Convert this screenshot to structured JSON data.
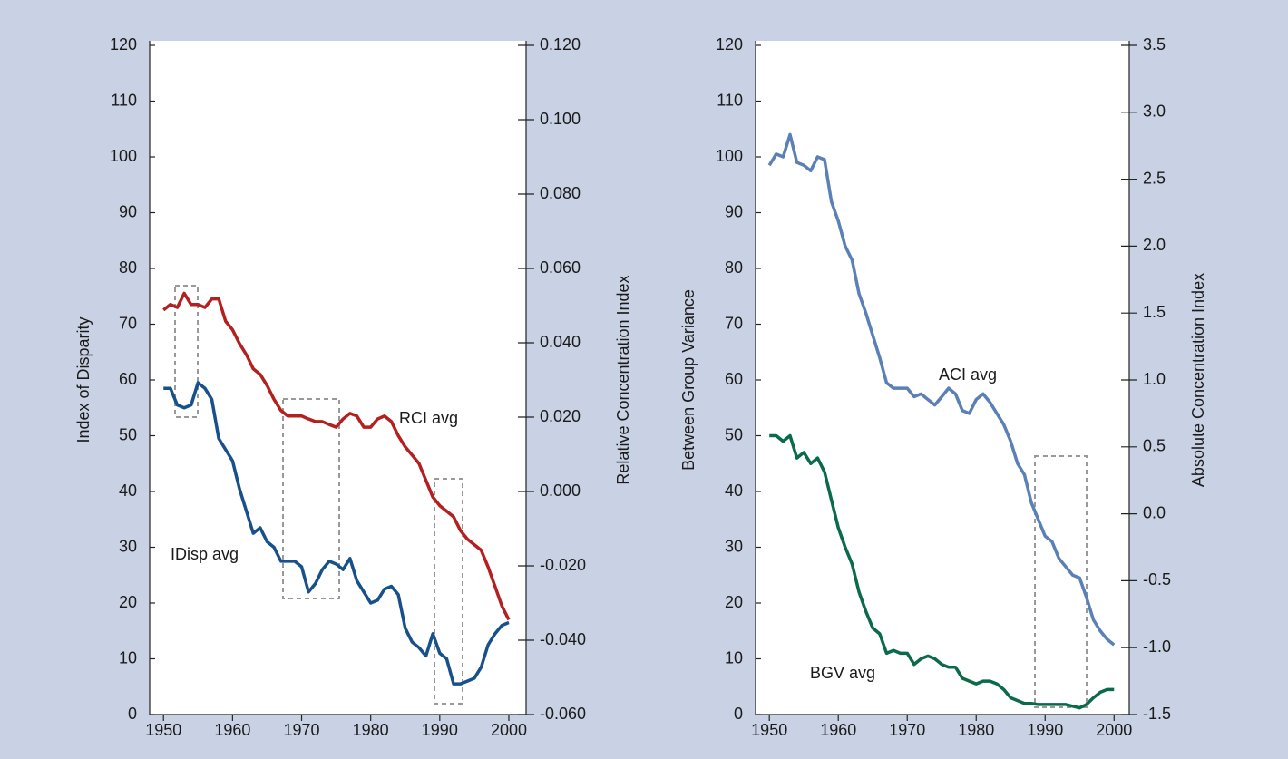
{
  "chart_data": [
    {
      "type": "line",
      "ylabel": "Index of Disparity",
      "y2label": "Relative Concentration Index",
      "x": [
        1950,
        1951,
        1952,
        1953,
        1954,
        1955,
        1956,
        1957,
        1958,
        1959,
        1960,
        1961,
        1962,
        1963,
        1964,
        1965,
        1966,
        1967,
        1968,
        1969,
        1970,
        1971,
        1972,
        1973,
        1974,
        1975,
        1976,
        1977,
        1978,
        1979,
        1980,
        1981,
        1982,
        1983,
        1984,
        1985,
        1986,
        1987,
        1988,
        1989,
        1990,
        1991,
        1992,
        1993,
        1994,
        1995,
        1996,
        1997,
        1998,
        1999,
        2000
      ],
      "xlim": [
        1948,
        2002.5
      ],
      "xticks": [
        1950,
        1960,
        1970,
        1980,
        1990,
        2000
      ],
      "ylim": [
        0,
        120
      ],
      "yticks": [
        0,
        10,
        20,
        30,
        40,
        50,
        60,
        70,
        80,
        90,
        100,
        110,
        120
      ],
      "y2lim": [
        -0.06,
        0.12
      ],
      "y2ticks": [
        {
          "value": 0.12,
          "label": "0.120"
        },
        {
          "value": 0.1,
          "label": "0.100"
        },
        {
          "value": 0.08,
          "label": "0.080"
        },
        {
          "value": 0.06,
          "label": "0.060"
        },
        {
          "value": 0.04,
          "label": "0.040"
        },
        {
          "value": 0.02,
          "label": "0.020"
        },
        {
          "value": 0,
          "label": "0.000"
        },
        {
          "value": -0.02,
          "label": "-0.020"
        },
        {
          "value": -0.04,
          "label": "-0.040"
        },
        {
          "value": -0.06,
          "label": "-0.060"
        }
      ],
      "series": [
        {
          "name": "IDisp avg",
          "color": "#17508a",
          "axis": "y",
          "values": [
            58.5,
            58.5,
            55.5,
            55,
            55.5,
            59.5,
            58.5,
            56.5,
            49.5,
            47.5,
            45.5,
            40.5,
            36.5,
            32.5,
            33.5,
            31,
            30,
            27.5,
            27.5,
            27.5,
            26.5,
            22,
            23.5,
            26,
            27.5,
            27,
            26,
            28,
            24,
            22,
            20,
            20.5,
            22.5,
            23,
            21.5,
            15.5,
            13,
            12,
            10.5,
            14.5,
            11,
            10,
            5.5,
            5.5,
            6,
            6.5,
            8.5,
            12.5,
            14.5,
            16,
            16.5
          ]
        },
        {
          "name": "RCI avg",
          "color": "#b3201f",
          "axis": "y2",
          "values": [
            0.0488,
            0.0503,
            0.0495,
            0.0533,
            0.0503,
            0.0503,
            0.0495,
            0.0518,
            0.0518,
            0.0458,
            0.0435,
            0.0398,
            0.0368,
            0.033,
            0.0315,
            0.0285,
            0.0248,
            0.0218,
            0.0203,
            0.0203,
            0.0203,
            0.0195,
            0.0188,
            0.0188,
            0.018,
            0.0173,
            0.0195,
            0.021,
            0.0203,
            0.0173,
            0.0173,
            0.0195,
            0.0203,
            0.0188,
            0.015,
            0.012,
            0.0098,
            0.0075,
            0.003,
            -0.0015,
            -0.0038,
            -0.0053,
            -0.0068,
            -0.0105,
            -0.0128,
            -0.0143,
            -0.0158,
            -0.0203,
            -0.0255,
            -0.0308,
            -0.0345
          ]
        }
      ]
    },
    {
      "type": "line",
      "ylabel": "Between Group Variance",
      "y2label": "Absolute Concentration Index",
      "x": [
        1950,
        1951,
        1952,
        1953,
        1954,
        1955,
        1956,
        1957,
        1958,
        1959,
        1960,
        1961,
        1962,
        1963,
        1964,
        1965,
        1966,
        1967,
        1968,
        1969,
        1970,
        1971,
        1972,
        1973,
        1974,
        1975,
        1976,
        1977,
        1978,
        1979,
        1980,
        1981,
        1982,
        1983,
        1984,
        1985,
        1986,
        1987,
        1988,
        1989,
        1990,
        1991,
        1992,
        1993,
        1994,
        1995,
        1996,
        1997,
        1998,
        1999,
        2000
      ],
      "xlim": [
        1948,
        2002.2
      ],
      "xticks": [
        1950,
        1960,
        1970,
        1980,
        1990,
        2000
      ],
      "ylim": [
        0,
        120
      ],
      "yticks": [
        0,
        10,
        20,
        30,
        40,
        50,
        60,
        70,
        80,
        90,
        100,
        110,
        120
      ],
      "y2lim": [
        -1.5,
        3.5
      ],
      "y2ticks": [
        3.5,
        {
          "value": 3,
          "label": "3.0"
        },
        2.5,
        {
          "value": 2,
          "label": "2.0"
        },
        1.5,
        {
          "value": 1,
          "label": "1.0"
        },
        0.5,
        {
          "value": 0,
          "label": "0.0"
        },
        -0.5,
        {
          "value": -1,
          "label": "-1.0"
        },
        -1.5
      ],
      "series": [
        {
          "name": "ACI avg",
          "color": "#5a80b6",
          "axis": "y2",
          "values": [
            2.604,
            2.688,
            2.667,
            2.833,
            2.625,
            2.604,
            2.563,
            2.667,
            2.646,
            2.333,
            2.188,
            2.0,
            1.896,
            1.646,
            1.5,
            1.333,
            1.167,
            0.979,
            0.938,
            0.938,
            0.938,
            0.875,
            0.896,
            0.854,
            0.813,
            0.875,
            0.938,
            0.896,
            0.771,
            0.75,
            0.854,
            0.896,
            0.833,
            0.75,
            0.667,
            0.542,
            0.375,
            0.292,
            0.083,
            -0.042,
            -0.167,
            -0.208,
            -0.333,
            -0.396,
            -0.458,
            -0.479,
            -0.625,
            -0.792,
            -0.875,
            -0.938,
            -0.979
          ]
        },
        {
          "name": "BGV avg",
          "color": "#0b6b48",
          "axis": "y",
          "values": [
            50,
            50,
            49,
            50,
            46,
            47,
            45,
            46,
            43.5,
            38.5,
            33.5,
            30,
            27,
            22,
            18.5,
            15.5,
            14.5,
            11,
            11.5,
            11,
            11,
            9,
            10,
            10.5,
            10,
            9,
            8.5,
            8.5,
            6.5,
            6,
            5.5,
            6,
            6,
            5.5,
            4.5,
            3,
            2.5,
            2,
            2,
            1.8,
            1.8,
            1.8,
            1.8,
            1.8,
            1.5,
            1.2,
            1.8,
            3,
            4,
            4.5,
            4.5
          ]
        }
      ]
    }
  ]
}
